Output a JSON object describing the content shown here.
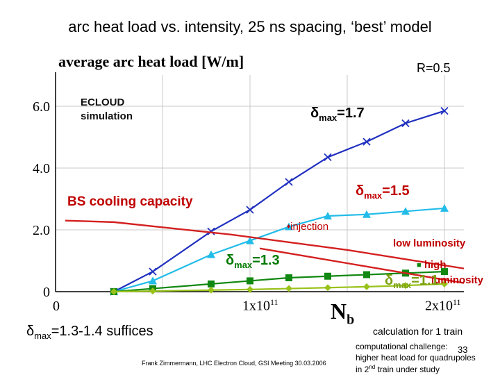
{
  "slide": {
    "title": "arc heat load vs. intensity, 25 ns spacing, ‘best’ model",
    "plot_title": "average arc heat load [W/m]",
    "r_label": "R=0.5",
    "ecloud_line1": "ECLOUD",
    "ecloud_line2": "simulation",
    "bs_cooling": "BS cooling capacity",
    "injection": "injection",
    "low_luminosity": "low luminosity",
    "high_luminosity_1": "high",
    "high_luminosity_2": "luminosity",
    "delta_prefix": "δ",
    "delta_sub": "max",
    "label_17": "=1.7",
    "label_15": "=1.5",
    "label_13": "=1.3",
    "label_11": "=1.1",
    "suffices": "=1.3-1.4 suffices",
    "calc_note": "calculation for 1 train",
    "note1": "computational challenge:",
    "note2": "higher heat load for quadrupoles",
    "note3_a": "in 2",
    "note3_sup": "nd",
    "note3_b": " train under study",
    "footer": "Frank Zimmermann, LHC Electron Cloud, GSI Meeting 30.03.2006",
    "page_number": "33",
    "x_axis_label": "N",
    "x_axis_sub": "b",
    "x_ticks": [
      {
        "mantissa": "0",
        "exp": ""
      },
      {
        "mantissa": "1x10",
        "exp": "11"
      },
      {
        "mantissa": "2x10",
        "exp": "11"
      }
    ]
  },
  "chart_data": {
    "type": "line",
    "ylim": [
      0,
      7
    ],
    "xlim": [
      0,
      2.2
    ],
    "x_unit": "1e11",
    "yticks": [
      "0",
      "2.0",
      "4.0",
      "6.0"
    ],
    "ytick_values": [
      0,
      2,
      4,
      6
    ],
    "grid": true,
    "series": [
      {
        "name": "δmax=1.7",
        "color": "#1f2fbf",
        "marker": "x",
        "x": [
          0.3,
          0.5,
          0.8,
          1.0,
          1.2,
          1.4,
          1.6,
          1.8,
          2.0
        ],
        "y": [
          0,
          0.65,
          1.95,
          2.65,
          3.55,
          4.35,
          4.85,
          5.45,
          5.85
        ]
      },
      {
        "name": "δmax=1.5",
        "color": "#22bce8",
        "marker": "triangle",
        "x": [
          0.3,
          0.5,
          0.8,
          1.0,
          1.2,
          1.4,
          1.6,
          1.8,
          2.0
        ],
        "y": [
          0,
          0.35,
          1.2,
          1.65,
          2.1,
          2.45,
          2.5,
          2.6,
          2.7
        ]
      },
      {
        "name": "δmax=1.3",
        "color": "#118811",
        "marker": "square",
        "x": [
          0.3,
          0.5,
          0.8,
          1.0,
          1.2,
          1.4,
          1.6,
          1.8,
          2.0
        ],
        "y": [
          0,
          0.1,
          0.25,
          0.35,
          0.45,
          0.5,
          0.55,
          0.6,
          0.65
        ]
      },
      {
        "name": "δmax=1.1",
        "color": "#99c21a",
        "marker": "diamond",
        "x": [
          0.3,
          0.5,
          0.8,
          1.0,
          1.2,
          1.4,
          1.6,
          1.8,
          2.0
        ],
        "y": [
          0,
          0.02,
          0.05,
          0.07,
          0.1,
          0.13,
          0.16,
          0.2,
          0.25
        ]
      },
      {
        "name": "BS cooling capacity",
        "color": "#d42020",
        "marker": "none",
        "x": [
          0.05,
          0.3,
          0.6,
          0.9,
          1.2,
          1.5,
          1.8,
          2.1
        ],
        "y": [
          2.3,
          2.25,
          2.05,
          1.85,
          1.6,
          1.35,
          1.05,
          0.75
        ]
      },
      {
        "name": "low luminosity",
        "color": "#d42020",
        "marker": "none",
        "x": [
          1.05,
          2.1
        ],
        "y": [
          1.4,
          0.28
        ]
      }
    ]
  }
}
